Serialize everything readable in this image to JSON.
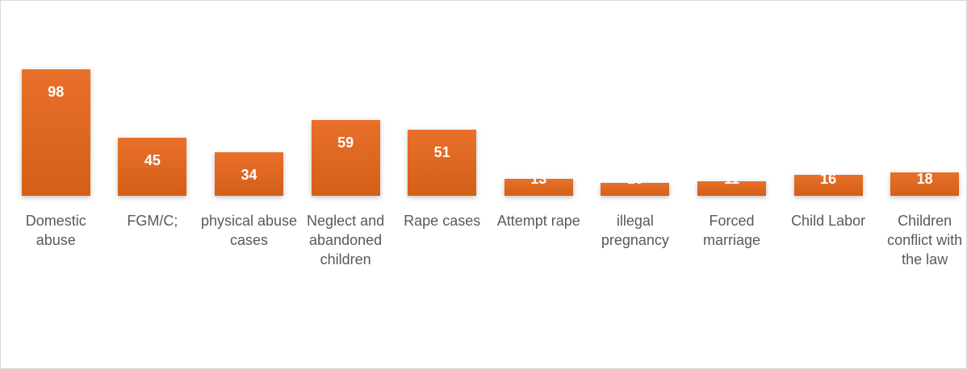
{
  "chart_data": {
    "type": "bar",
    "categories": [
      "Domestic abuse",
      "FGM/C;",
      "physical abuse cases",
      "Neglect and abandoned children",
      "Rape cases",
      "Attempt rape",
      "illegal pregnancy",
      "Forced marriage",
      "Child Labor",
      "Children conflict with the law"
    ],
    "values": [
      98,
      45,
      34,
      59,
      51,
      13,
      10,
      11,
      16,
      18
    ],
    "color": "#e8702a"
  }
}
